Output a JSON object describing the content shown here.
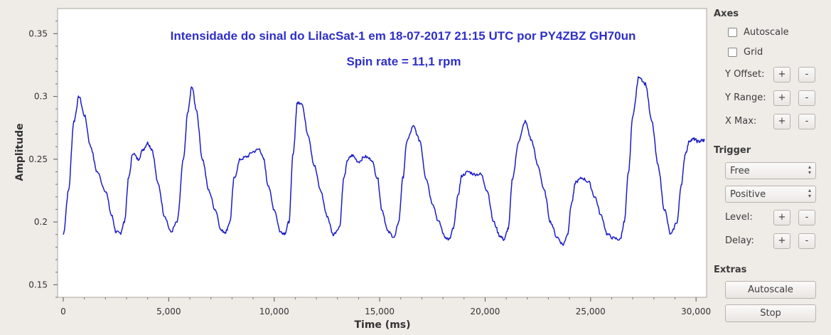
{
  "plot": {
    "annotation_line1": "Intensidade do sinal do LilacSat-1 em 18-07-2017  21:15 UTC  por PY4ZBZ  GH70un",
    "annotation_line2": "Spin rate = 11,1 rpm",
    "annotation_color": "#2f2fc8",
    "trace_color": "#1c1cc8"
  },
  "chart_data": {
    "type": "line",
    "xlabel": "Time (ms)",
    "ylabel": "Amplitude",
    "xlim": [
      0,
      30500
    ],
    "ylim": [
      0.14,
      0.37
    ],
    "x_ticks": [
      0,
      5000,
      10000,
      15000,
      20000,
      25000,
      30000
    ],
    "x_tick_labels": [
      "0",
      "5,000",
      "10,000",
      "15,000",
      "20,000",
      "25,000",
      "30,000"
    ],
    "y_ticks": [
      0.15,
      0.2,
      0.25,
      0.3,
      0.35
    ],
    "y_tick_labels": [
      "0.15",
      "0.2",
      "0.25",
      "0.3",
      "0.35"
    ],
    "grid": false,
    "series": [
      {
        "x": [
          0,
          250,
          500,
          750,
          1000,
          1300,
          1600,
          2000,
          2300,
          2500,
          2700,
          2900,
          3100,
          3300,
          3550,
          3800,
          4000,
          4200,
          4500,
          4800,
          5100,
          5400,
          5700,
          5900,
          6100,
          6300,
          6600,
          6900,
          7200,
          7500,
          7700,
          7900,
          8100,
          8400,
          8700,
          9000,
          9300,
          9500,
          9700,
          10000,
          10300,
          10500,
          10700,
          10900,
          11100,
          11300,
          11600,
          11900,
          12200,
          12500,
          12800,
          13100,
          13300,
          13500,
          13700,
          14000,
          14300,
          14600,
          14900,
          15100,
          15400,
          15700,
          15900,
          16100,
          16300,
          16600,
          16900,
          17200,
          17500,
          17800,
          18100,
          18300,
          18500,
          18700,
          18900,
          19200,
          19500,
          19800,
          20100,
          20400,
          20700,
          20900,
          21100,
          21300,
          21600,
          21900,
          22200,
          22500,
          22800,
          23100,
          23400,
          23700,
          23900,
          24100,
          24300,
          24600,
          24900,
          25200,
          25500,
          25800,
          26100,
          26400,
          26600,
          26800,
          27000,
          27300,
          27600,
          27900,
          28200,
          28500,
          28800,
          29100,
          29300,
          29500,
          29700,
          29900,
          30100,
          30300,
          30400
        ],
        "y": [
          0.19,
          0.225,
          0.28,
          0.3,
          0.285,
          0.26,
          0.24,
          0.225,
          0.205,
          0.192,
          0.191,
          0.2,
          0.235,
          0.255,
          0.25,
          0.258,
          0.263,
          0.258,
          0.23,
          0.205,
          0.192,
          0.2,
          0.25,
          0.287,
          0.308,
          0.29,
          0.25,
          0.225,
          0.21,
          0.193,
          0.192,
          0.2,
          0.235,
          0.25,
          0.252,
          0.256,
          0.258,
          0.25,
          0.23,
          0.21,
          0.192,
          0.191,
          0.2,
          0.255,
          0.295,
          0.295,
          0.27,
          0.245,
          0.225,
          0.205,
          0.19,
          0.196,
          0.235,
          0.25,
          0.253,
          0.248,
          0.252,
          0.25,
          0.235,
          0.21,
          0.192,
          0.188,
          0.2,
          0.235,
          0.265,
          0.276,
          0.265,
          0.235,
          0.215,
          0.2,
          0.188,
          0.186,
          0.195,
          0.22,
          0.237,
          0.24,
          0.238,
          0.238,
          0.225,
          0.2,
          0.189,
          0.186,
          0.195,
          0.235,
          0.265,
          0.28,
          0.265,
          0.245,
          0.225,
          0.2,
          0.188,
          0.182,
          0.19,
          0.215,
          0.232,
          0.235,
          0.232,
          0.22,
          0.205,
          0.19,
          0.187,
          0.186,
          0.2,
          0.24,
          0.285,
          0.316,
          0.31,
          0.28,
          0.245,
          0.21,
          0.19,
          0.2,
          0.23,
          0.255,
          0.265,
          0.266,
          0.264,
          0.265,
          0.265
        ]
      }
    ]
  },
  "sidebar": {
    "axes_title": "Axes",
    "autoscale_check": "Autoscale",
    "grid_check": "Grid",
    "y_offset_label": "Y Offset:",
    "y_range_label": "Y Range:",
    "x_max_label": "X Max:",
    "plus": "+",
    "minus": "-",
    "trigger_title": "Trigger",
    "trigger_mode": "Free",
    "trigger_slope": "Positive",
    "level_label": "Level:",
    "delay_label": "Delay:",
    "extras_title": "Extras",
    "autoscale_button": "Autoscale",
    "stop_button": "Stop"
  }
}
